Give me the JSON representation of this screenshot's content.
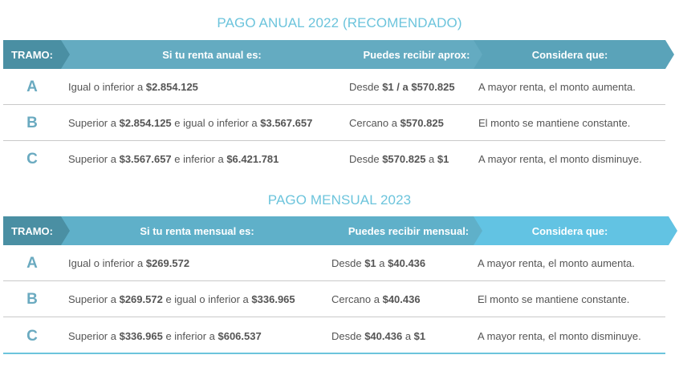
{
  "tables": [
    {
      "title": "PAGO ANUAL 2022 (RECOMENDADO)",
      "headers": {
        "tramo": "TRAMO:",
        "renta": "Si tu renta anual es:",
        "recibir": "Puedes recibir aprox:",
        "considera": "Considera que:"
      },
      "rows": [
        {
          "tramo": "A",
          "renta": [
            {
              "t": "Igual o inferior a ",
              "b": false
            },
            {
              "t": "$2.854.125",
              "b": true
            }
          ],
          "recibir": [
            {
              "t": "Desde ",
              "b": false
            },
            {
              "t": "$1 / a $570.825",
              "b": true
            }
          ],
          "considera": "A mayor renta, el monto aumenta."
        },
        {
          "tramo": "B",
          "renta": [
            {
              "t": "Superior a ",
              "b": false
            },
            {
              "t": "$2.854.125",
              "b": true
            },
            {
              "t": " e igual o inferior a ",
              "b": false
            },
            {
              "t": "$3.567.657",
              "b": true
            }
          ],
          "recibir": [
            {
              "t": "Cercano a ",
              "b": false
            },
            {
              "t": "$570.825",
              "b": true
            }
          ],
          "considera": "El monto se mantiene constante."
        },
        {
          "tramo": "C",
          "renta": [
            {
              "t": "Superior a ",
              "b": false
            },
            {
              "t": "$3.567.657",
              "b": true
            },
            {
              "t": " e inferior a ",
              "b": false
            },
            {
              "t": "$6.421.781",
              "b": true
            }
          ],
          "recibir": [
            {
              "t": "Desde ",
              "b": false
            },
            {
              "t": "$570.825",
              "b": true
            },
            {
              "t": " a ",
              "b": false
            },
            {
              "t": "$1",
              "b": true
            }
          ],
          "considera": "A mayor renta, el monto disminuye."
        }
      ]
    },
    {
      "title": "PAGO MENSUAL 2023",
      "headers": {
        "tramo": "TRAMO:",
        "renta": "Si tu renta mensual es:",
        "recibir": "Puedes recibir mensual:",
        "considera": "Considera que:"
      },
      "rows": [
        {
          "tramo": "A",
          "renta": [
            {
              "t": "Igual o inferior a ",
              "b": false
            },
            {
              "t": "$269.572",
              "b": true
            }
          ],
          "recibir": [
            {
              "t": "Desde ",
              "b": false
            },
            {
              "t": "$1",
              "b": true
            },
            {
              "t": " a ",
              "b": false
            },
            {
              "t": "$40.436",
              "b": true
            }
          ],
          "considera": "A mayor renta, el monto aumenta."
        },
        {
          "tramo": "B",
          "renta": [
            {
              "t": "Superior a ",
              "b": false
            },
            {
              "t": "$269.572",
              "b": true
            },
            {
              "t": " e igual o inferior a ",
              "b": false
            },
            {
              "t": "$336.965",
              "b": true
            }
          ],
          "recibir": [
            {
              "t": "Cercano a ",
              "b": false
            },
            {
              "t": "$40.436",
              "b": true
            }
          ],
          "considera": "El monto se mantiene constante."
        },
        {
          "tramo": "C",
          "renta": [
            {
              "t": "Superior a ",
              "b": false
            },
            {
              "t": "$336.965",
              "b": true
            },
            {
              "t": " e inferior a ",
              "b": false
            },
            {
              "t": "$606.537",
              "b": true
            }
          ],
          "recibir": [
            {
              "t": "Desde ",
              "b": false
            },
            {
              "t": "$40.436",
              "b": true
            },
            {
              "t": " a ",
              "b": false
            },
            {
              "t": "$1",
              "b": true
            }
          ],
          "considera": "A mayor renta, el monto disminuye."
        }
      ]
    }
  ],
  "colors": {
    "title": "#6cc4dc",
    "tramo_letter": "#6aaac0",
    "body_text": "#555555",
    "row_separator": "#c9c9c9"
  }
}
